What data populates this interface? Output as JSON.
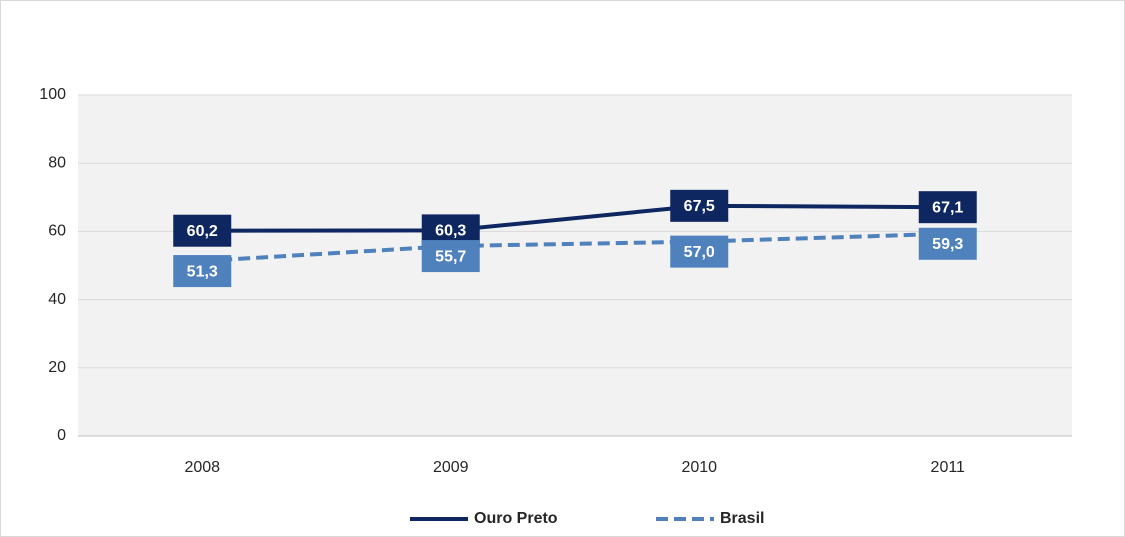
{
  "chart_data": {
    "type": "line",
    "categories": [
      "2008",
      "2009",
      "2010",
      "2011"
    ],
    "series": [
      {
        "name": "Ouro Preto",
        "color": "#0f2760",
        "dash": false,
        "values": [
          60.2,
          60.3,
          67.5,
          67.1
        ],
        "value_labels": [
          "60,2",
          "60,3",
          "67,5",
          "67,1"
        ]
      },
      {
        "name": "Brasil",
        "color": "#4f81bd",
        "dash": true,
        "values": [
          51.3,
          55.7,
          57.0,
          59.3
        ],
        "value_labels": [
          "51,3",
          "55,7",
          "57,0",
          "59,3"
        ]
      }
    ],
    "ylim": [
      0,
      100
    ],
    "yticks": [
      0,
      20,
      40,
      60,
      80,
      100
    ],
    "grid": true,
    "legend": "bottom"
  }
}
